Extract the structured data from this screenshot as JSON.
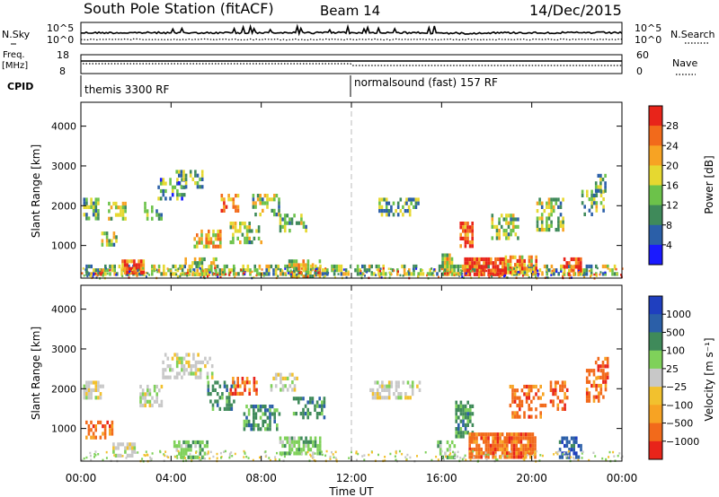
{
  "header": {
    "title": "South Pole Station (fitACF)",
    "beam": "Beam 14",
    "date": "14/Dec/2015"
  },
  "top_panels": {
    "nsky_label": "N.Sky",
    "nsearch_label": "N.Search",
    "nsky_ticks": [
      "10^5",
      "10^0"
    ],
    "freq_label": "Freq.",
    "freq_unit": "[MHz]",
    "freq_ticks": [
      "18",
      "8"
    ],
    "nave_ticks": [
      "60",
      "0"
    ],
    "nave_label": "Nave",
    "cpid_label": "CPID",
    "cpid_segments": [
      {
        "label": "themis 3300 RF",
        "start_hour": 0,
        "end_hour": 12
      },
      {
        "label": "normalsound (fast) 157 RF",
        "start_hour": 12,
        "end_hour": 24
      }
    ]
  },
  "colors": {
    "power": [
      "#1a1aff",
      "#2b5fa8",
      "#3f8a5a",
      "#6cc24a",
      "#e6d830",
      "#f7a323",
      "#f26a1b",
      "#e8241a"
    ],
    "velocity": [
      "#e8241a",
      "#f26a1b",
      "#f7a323",
      "#f2c12e",
      "#c8c8c8",
      "#7fd15a",
      "#3f8a5a",
      "#2b5fa8",
      "#1f3fbf"
    ],
    "frame": "#000000",
    "dashed_line": "#bbbbbb"
  },
  "chart_data": [
    {
      "type": "heatmap",
      "name": "power",
      "ylabel": "Slant Range [km]",
      "yticks": [
        "1000",
        "2000",
        "3000",
        "4000"
      ],
      "ylim": [
        180,
        4600
      ],
      "xlim": [
        0,
        24
      ],
      "colorbar_label": "Power [dB]",
      "colorbar_ticks": [
        "4",
        "8",
        "12",
        "16",
        "20",
        "24",
        "28"
      ],
      "clim": [
        0,
        32
      ],
      "features": [
        {
          "t0": 0.0,
          "t1": 23.8,
          "r0": 250,
          "r1": 520,
          "level": 0.45,
          "density": 0.55
        },
        {
          "t0": 0.1,
          "t1": 0.8,
          "r0": 1700,
          "r1": 2200,
          "level": 0.4,
          "density": 0.7
        },
        {
          "t0": 0.9,
          "t1": 1.6,
          "r0": 1000,
          "r1": 1350,
          "level": 0.45,
          "density": 0.6
        },
        {
          "t0": 1.2,
          "t1": 2.0,
          "r0": 1700,
          "r1": 2100,
          "level": 0.5,
          "density": 0.55
        },
        {
          "t0": 1.8,
          "t1": 2.8,
          "r0": 300,
          "r1": 650,
          "level": 0.8,
          "density": 0.85
        },
        {
          "t0": 2.8,
          "t1": 3.6,
          "r0": 1700,
          "r1": 2100,
          "level": 0.4,
          "density": 0.5
        },
        {
          "t0": 3.4,
          "t1": 4.6,
          "r0": 2200,
          "r1": 2700,
          "level": 0.35,
          "density": 0.45
        },
        {
          "t0": 4.2,
          "t1": 5.4,
          "r0": 2500,
          "r1": 2900,
          "level": 0.35,
          "density": 0.55
        },
        {
          "t0": 5.0,
          "t1": 6.2,
          "r0": 1000,
          "r1": 1400,
          "level": 0.6,
          "density": 0.6
        },
        {
          "t0": 4.6,
          "t1": 6.0,
          "r0": 300,
          "r1": 700,
          "level": 0.5,
          "density": 0.6
        },
        {
          "t0": 6.2,
          "t1": 7.0,
          "r0": 1900,
          "r1": 2300,
          "level": 0.75,
          "density": 0.6
        },
        {
          "t0": 6.6,
          "t1": 8.0,
          "r0": 1100,
          "r1": 1600,
          "level": 0.45,
          "density": 0.55
        },
        {
          "t0": 7.6,
          "t1": 8.8,
          "r0": 1800,
          "r1": 2300,
          "level": 0.45,
          "density": 0.55
        },
        {
          "t0": 8.8,
          "t1": 10.0,
          "r0": 1400,
          "r1": 1800,
          "level": 0.4,
          "density": 0.45
        },
        {
          "t0": 9.2,
          "t1": 10.6,
          "r0": 250,
          "r1": 650,
          "level": 0.55,
          "density": 0.6
        },
        {
          "t0": 13.2,
          "t1": 14.6,
          "r0": 1800,
          "r1": 2200,
          "level": 0.35,
          "density": 0.45
        },
        {
          "t0": 14.4,
          "t1": 15.0,
          "r0": 1950,
          "r1": 2200,
          "level": 0.35,
          "density": 0.6
        },
        {
          "t0": 16.0,
          "t1": 16.6,
          "r0": 250,
          "r1": 800,
          "level": 0.55,
          "density": 0.7
        },
        {
          "t0": 16.8,
          "t1": 17.4,
          "r0": 1000,
          "r1": 1600,
          "level": 0.85,
          "density": 0.8
        },
        {
          "t0": 17.0,
          "t1": 18.8,
          "r0": 280,
          "r1": 700,
          "level": 0.9,
          "density": 0.9
        },
        {
          "t0": 18.8,
          "t1": 20.2,
          "r0": 280,
          "r1": 750,
          "level": 0.7,
          "density": 0.8
        },
        {
          "t0": 18.2,
          "t1": 19.4,
          "r0": 1200,
          "r1": 1800,
          "level": 0.45,
          "density": 0.5
        },
        {
          "t0": 20.2,
          "t1": 21.4,
          "r0": 1400,
          "r1": 2200,
          "level": 0.45,
          "density": 0.5
        },
        {
          "t0": 21.4,
          "t1": 22.2,
          "r0": 300,
          "r1": 700,
          "level": 0.85,
          "density": 0.75
        },
        {
          "t0": 22.2,
          "t1": 23.2,
          "r0": 1800,
          "r1": 2400,
          "level": 0.4,
          "density": 0.45
        },
        {
          "t0": 22.8,
          "t1": 23.3,
          "r0": 2400,
          "r1": 2800,
          "level": 0.35,
          "density": 0.5
        }
      ]
    },
    {
      "type": "heatmap",
      "name": "velocity",
      "ylabel": "Slant Range [km]",
      "yticks": [
        "1000",
        "2000",
        "3000",
        "4000"
      ],
      "ylim": [
        180,
        4600
      ],
      "xlim": [
        0,
        24
      ],
      "xlabel": "Time UT",
      "xticks": [
        "00:00",
        "04:00",
        "08:00",
        "12:00",
        "16:00",
        "20:00",
        "00:00"
      ],
      "colorbar_label": "Velocity [m s⁻¹]",
      "colorbar_ticks": [
        "1000",
        "500",
        "100",
        "25",
        "−25",
        "−100",
        "−500",
        "−1000"
      ],
      "features": [
        {
          "t0": 0.1,
          "t1": 1.0,
          "r0": 1800,
          "r1": 2200,
          "class": 4,
          "density": 0.7
        },
        {
          "t0": 0.2,
          "t1": 1.4,
          "r0": 800,
          "r1": 1200,
          "class": 1,
          "density": 0.5
        },
        {
          "t0": 1.4,
          "t1": 2.4,
          "r0": 300,
          "r1": 650,
          "class": 4,
          "density": 0.7
        },
        {
          "t0": 2.6,
          "t1": 3.6,
          "r0": 1600,
          "r1": 2100,
          "class": 4,
          "density": 0.5
        },
        {
          "t0": 3.6,
          "t1": 5.8,
          "r0": 2300,
          "r1": 2900,
          "class": 4,
          "density": 0.45
        },
        {
          "t0": 4.0,
          "t1": 5.6,
          "r0": 300,
          "r1": 700,
          "class": 5,
          "density": 0.55
        },
        {
          "t0": 5.6,
          "t1": 6.8,
          "r0": 1500,
          "r1": 2200,
          "class": 6,
          "density": 0.5
        },
        {
          "t0": 6.6,
          "t1": 7.8,
          "r0": 1900,
          "r1": 2300,
          "class": 1,
          "density": 0.55
        },
        {
          "t0": 7.2,
          "t1": 8.8,
          "r0": 1000,
          "r1": 1600,
          "class": 6,
          "density": 0.55
        },
        {
          "t0": 8.4,
          "t1": 9.6,
          "r0": 2000,
          "r1": 2400,
          "class": 4,
          "density": 0.5
        },
        {
          "t0": 8.8,
          "t1": 10.6,
          "r0": 400,
          "r1": 800,
          "class": 5,
          "density": 0.65
        },
        {
          "t0": 9.4,
          "t1": 10.8,
          "r0": 1300,
          "r1": 1800,
          "class": 6,
          "density": 0.45
        },
        {
          "t0": 12.8,
          "t1": 15.0,
          "r0": 1800,
          "r1": 2200,
          "class": 4,
          "density": 0.4
        },
        {
          "t0": 15.8,
          "t1": 16.6,
          "r0": 280,
          "r1": 700,
          "class": 5,
          "density": 0.6
        },
        {
          "t0": 16.6,
          "t1": 17.4,
          "r0": 800,
          "r1": 1700,
          "class": 6,
          "density": 0.65
        },
        {
          "t0": 17.2,
          "t1": 20.2,
          "r0": 280,
          "r1": 900,
          "class": 1,
          "density": 0.85
        },
        {
          "t0": 19.0,
          "t1": 20.6,
          "r0": 1300,
          "r1": 2100,
          "class": 1,
          "density": 0.5
        },
        {
          "t0": 20.8,
          "t1": 21.6,
          "r0": 1500,
          "r1": 2200,
          "class": 1,
          "density": 0.55
        },
        {
          "t0": 21.2,
          "t1": 22.2,
          "r0": 300,
          "r1": 800,
          "class": 7,
          "density": 0.65
        },
        {
          "t0": 22.4,
          "t1": 23.3,
          "r0": 1700,
          "r1": 2500,
          "class": 1,
          "density": 0.55
        },
        {
          "t0": 22.8,
          "t1": 23.4,
          "r0": 2300,
          "r1": 2800,
          "class": 1,
          "density": 0.5
        }
      ]
    }
  ]
}
